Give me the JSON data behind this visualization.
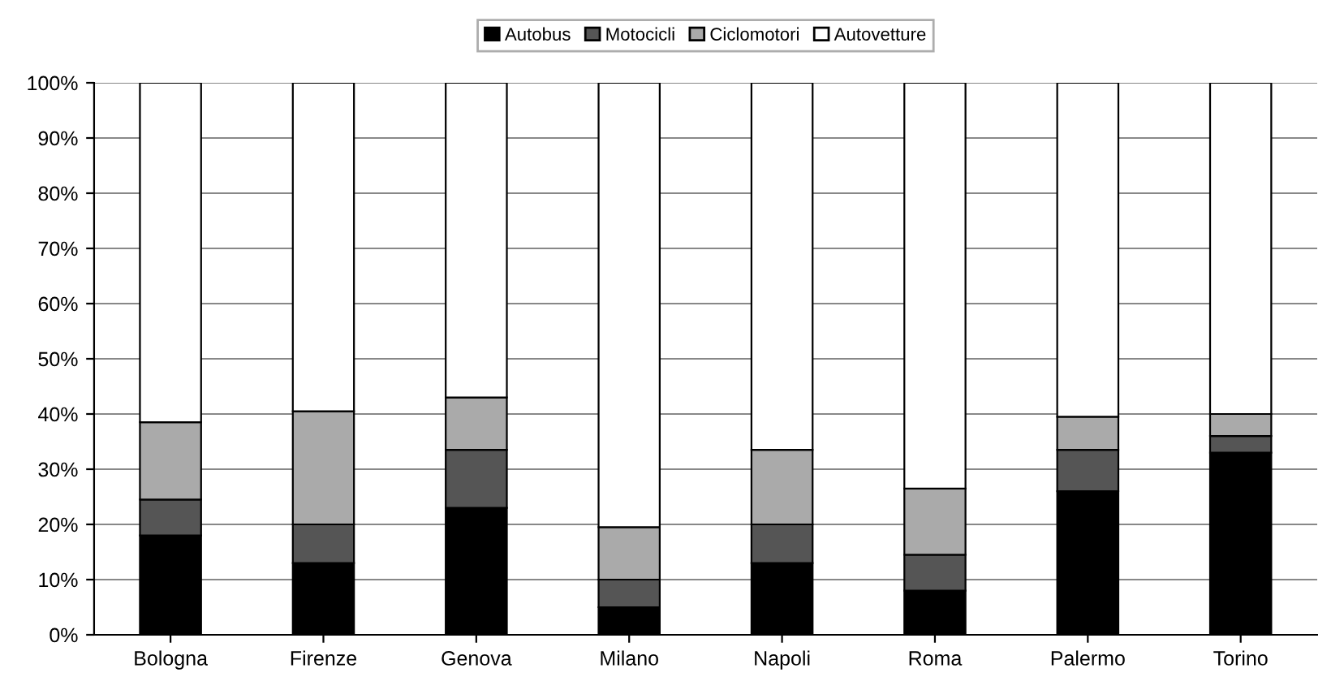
{
  "chart_data": {
    "type": "bar",
    "stacked": true,
    "categories": [
      "Bologna",
      "Firenze",
      "Genova",
      "Milano",
      "Napoli",
      "Roma",
      "Palermo",
      "Torino"
    ],
    "series": [
      {
        "name": "Autobus",
        "color": "#000000",
        "values": [
          18,
          13,
          23,
          5,
          13,
          8,
          26,
          33
        ]
      },
      {
        "name": "Motocicli",
        "color": "#555555",
        "values": [
          6.5,
          7,
          10.5,
          5,
          7,
          6.5,
          7.5,
          3
        ]
      },
      {
        "name": "Ciclomotori",
        "color": "#aaaaaa",
        "values": [
          14,
          20.5,
          9.5,
          9.5,
          13.5,
          12,
          6,
          4
        ]
      },
      {
        "name": "Autovetture",
        "color": "#ffffff",
        "values": [
          61.5,
          59.5,
          57,
          80.5,
          66.5,
          73.5,
          60.5,
          60
        ]
      }
    ],
    "ylim": [
      0,
      100
    ],
    "yticks": [
      {
        "value": 0,
        "label": "0%"
      },
      {
        "value": 10,
        "label": "10%"
      },
      {
        "value": 20,
        "label": "20%"
      },
      {
        "value": 30,
        "label": "30%"
      },
      {
        "value": 40,
        "label": "40%"
      },
      {
        "value": 50,
        "label": "50%"
      },
      {
        "value": 60,
        "label": "60%"
      },
      {
        "value": 70,
        "label": "70%"
      },
      {
        "value": 80,
        "label": "80%"
      },
      {
        "value": 90,
        "label": "90%"
      },
      {
        "value": 100,
        "label": "100%"
      }
    ],
    "grid": "y",
    "legend": "top"
  }
}
